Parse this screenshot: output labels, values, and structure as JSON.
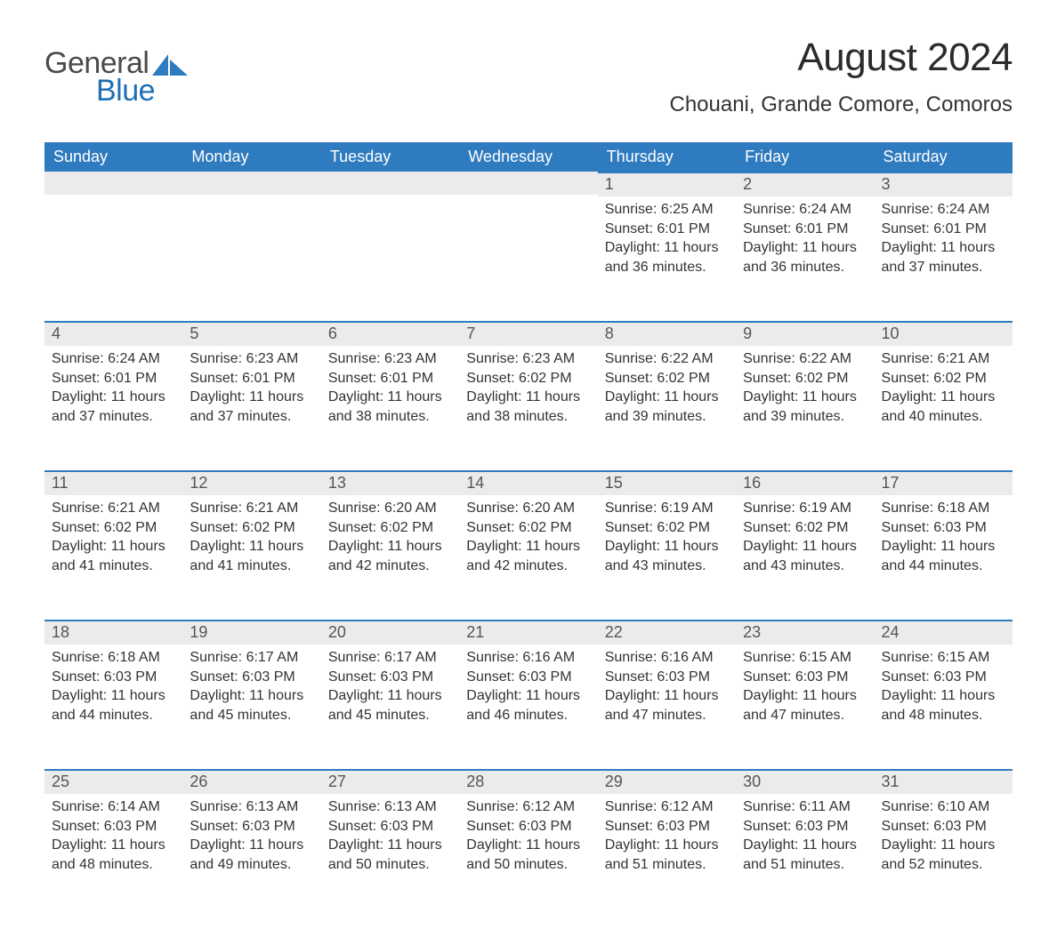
{
  "logo": {
    "word1": "General",
    "word2": "Blue",
    "accent_color": "#2f7bbf",
    "text_gray": "#4a4a4a"
  },
  "header": {
    "month_title": "August 2024",
    "location": "Chouani, Grande Comore, Comoros"
  },
  "calendar": {
    "header_bg": "#2f7bbf",
    "header_fg": "#ffffff",
    "daynum_bg": "#ebebeb",
    "border_color": "#2f7bbf",
    "weekday_labels": [
      "Sunday",
      "Monday",
      "Tuesday",
      "Wednesday",
      "Thursday",
      "Friday",
      "Saturday"
    ],
    "weeks": [
      [
        null,
        null,
        null,
        null,
        {
          "n": "1",
          "sunrise": "Sunrise: 6:25 AM",
          "sunset": "Sunset: 6:01 PM",
          "daylight": "Daylight: 11 hours and 36 minutes."
        },
        {
          "n": "2",
          "sunrise": "Sunrise: 6:24 AM",
          "sunset": "Sunset: 6:01 PM",
          "daylight": "Daylight: 11 hours and 36 minutes."
        },
        {
          "n": "3",
          "sunrise": "Sunrise: 6:24 AM",
          "sunset": "Sunset: 6:01 PM",
          "daylight": "Daylight: 11 hours and 37 minutes."
        }
      ],
      [
        {
          "n": "4",
          "sunrise": "Sunrise: 6:24 AM",
          "sunset": "Sunset: 6:01 PM",
          "daylight": "Daylight: 11 hours and 37 minutes."
        },
        {
          "n": "5",
          "sunrise": "Sunrise: 6:23 AM",
          "sunset": "Sunset: 6:01 PM",
          "daylight": "Daylight: 11 hours and 37 minutes."
        },
        {
          "n": "6",
          "sunrise": "Sunrise: 6:23 AM",
          "sunset": "Sunset: 6:01 PM",
          "daylight": "Daylight: 11 hours and 38 minutes."
        },
        {
          "n": "7",
          "sunrise": "Sunrise: 6:23 AM",
          "sunset": "Sunset: 6:02 PM",
          "daylight": "Daylight: 11 hours and 38 minutes."
        },
        {
          "n": "8",
          "sunrise": "Sunrise: 6:22 AM",
          "sunset": "Sunset: 6:02 PM",
          "daylight": "Daylight: 11 hours and 39 minutes."
        },
        {
          "n": "9",
          "sunrise": "Sunrise: 6:22 AM",
          "sunset": "Sunset: 6:02 PM",
          "daylight": "Daylight: 11 hours and 39 minutes."
        },
        {
          "n": "10",
          "sunrise": "Sunrise: 6:21 AM",
          "sunset": "Sunset: 6:02 PM",
          "daylight": "Daylight: 11 hours and 40 minutes."
        }
      ],
      [
        {
          "n": "11",
          "sunrise": "Sunrise: 6:21 AM",
          "sunset": "Sunset: 6:02 PM",
          "daylight": "Daylight: 11 hours and 41 minutes."
        },
        {
          "n": "12",
          "sunrise": "Sunrise: 6:21 AM",
          "sunset": "Sunset: 6:02 PM",
          "daylight": "Daylight: 11 hours and 41 minutes."
        },
        {
          "n": "13",
          "sunrise": "Sunrise: 6:20 AM",
          "sunset": "Sunset: 6:02 PM",
          "daylight": "Daylight: 11 hours and 42 minutes."
        },
        {
          "n": "14",
          "sunrise": "Sunrise: 6:20 AM",
          "sunset": "Sunset: 6:02 PM",
          "daylight": "Daylight: 11 hours and 42 minutes."
        },
        {
          "n": "15",
          "sunrise": "Sunrise: 6:19 AM",
          "sunset": "Sunset: 6:02 PM",
          "daylight": "Daylight: 11 hours and 43 minutes."
        },
        {
          "n": "16",
          "sunrise": "Sunrise: 6:19 AM",
          "sunset": "Sunset: 6:02 PM",
          "daylight": "Daylight: 11 hours and 43 minutes."
        },
        {
          "n": "17",
          "sunrise": "Sunrise: 6:18 AM",
          "sunset": "Sunset: 6:03 PM",
          "daylight": "Daylight: 11 hours and 44 minutes."
        }
      ],
      [
        {
          "n": "18",
          "sunrise": "Sunrise: 6:18 AM",
          "sunset": "Sunset: 6:03 PM",
          "daylight": "Daylight: 11 hours and 44 minutes."
        },
        {
          "n": "19",
          "sunrise": "Sunrise: 6:17 AM",
          "sunset": "Sunset: 6:03 PM",
          "daylight": "Daylight: 11 hours and 45 minutes."
        },
        {
          "n": "20",
          "sunrise": "Sunrise: 6:17 AM",
          "sunset": "Sunset: 6:03 PM",
          "daylight": "Daylight: 11 hours and 45 minutes."
        },
        {
          "n": "21",
          "sunrise": "Sunrise: 6:16 AM",
          "sunset": "Sunset: 6:03 PM",
          "daylight": "Daylight: 11 hours and 46 minutes."
        },
        {
          "n": "22",
          "sunrise": "Sunrise: 6:16 AM",
          "sunset": "Sunset: 6:03 PM",
          "daylight": "Daylight: 11 hours and 47 minutes."
        },
        {
          "n": "23",
          "sunrise": "Sunrise: 6:15 AM",
          "sunset": "Sunset: 6:03 PM",
          "daylight": "Daylight: 11 hours and 47 minutes."
        },
        {
          "n": "24",
          "sunrise": "Sunrise: 6:15 AM",
          "sunset": "Sunset: 6:03 PM",
          "daylight": "Daylight: 11 hours and 48 minutes."
        }
      ],
      [
        {
          "n": "25",
          "sunrise": "Sunrise: 6:14 AM",
          "sunset": "Sunset: 6:03 PM",
          "daylight": "Daylight: 11 hours and 48 minutes."
        },
        {
          "n": "26",
          "sunrise": "Sunrise: 6:13 AM",
          "sunset": "Sunset: 6:03 PM",
          "daylight": "Daylight: 11 hours and 49 minutes."
        },
        {
          "n": "27",
          "sunrise": "Sunrise: 6:13 AM",
          "sunset": "Sunset: 6:03 PM",
          "daylight": "Daylight: 11 hours and 50 minutes."
        },
        {
          "n": "28",
          "sunrise": "Sunrise: 6:12 AM",
          "sunset": "Sunset: 6:03 PM",
          "daylight": "Daylight: 11 hours and 50 minutes."
        },
        {
          "n": "29",
          "sunrise": "Sunrise: 6:12 AM",
          "sunset": "Sunset: 6:03 PM",
          "daylight": "Daylight: 11 hours and 51 minutes."
        },
        {
          "n": "30",
          "sunrise": "Sunrise: 6:11 AM",
          "sunset": "Sunset: 6:03 PM",
          "daylight": "Daylight: 11 hours and 51 minutes."
        },
        {
          "n": "31",
          "sunrise": "Sunrise: 6:10 AM",
          "sunset": "Sunset: 6:03 PM",
          "daylight": "Daylight: 11 hours and 52 minutes."
        }
      ]
    ]
  }
}
